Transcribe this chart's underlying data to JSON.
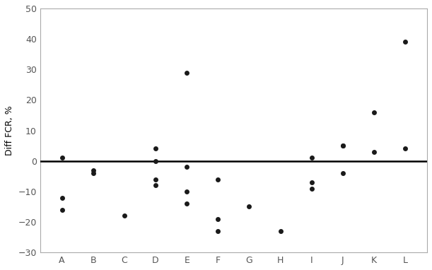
{
  "categories": [
    "A",
    "B",
    "C",
    "D",
    "E",
    "F",
    "G",
    "H",
    "I",
    "J",
    "K",
    "L"
  ],
  "data_points": {
    "A": [
      1,
      -12,
      -16
    ],
    "B": [
      -3,
      -4
    ],
    "C": [
      -18
    ],
    "D": [
      4,
      0,
      -6,
      -8
    ],
    "E": [
      29,
      -2,
      -10,
      -14
    ],
    "F": [
      -6,
      -19,
      -23
    ],
    "G": [
      -15
    ],
    "H": [
      -23
    ],
    "I": [
      1,
      -7,
      -9
    ],
    "J": [
      5,
      5,
      -4
    ],
    "K": [
      16,
      3
    ],
    "L": [
      39,
      4
    ]
  },
  "ylabel": "Diff FCR, %",
  "ylim": [
    -30,
    50
  ],
  "yticks": [
    -30,
    -20,
    -10,
    0,
    10,
    20,
    30,
    40,
    50
  ],
  "hline_y": 0,
  "hline_color": "#000000",
  "marker_color": "#1a1a1a",
  "marker_size": 5,
  "background_color": "#ffffff",
  "spine_color": "#aaaaaa",
  "tick_color": "#555555",
  "label_fontsize": 9,
  "ylabel_fontsize": 9
}
